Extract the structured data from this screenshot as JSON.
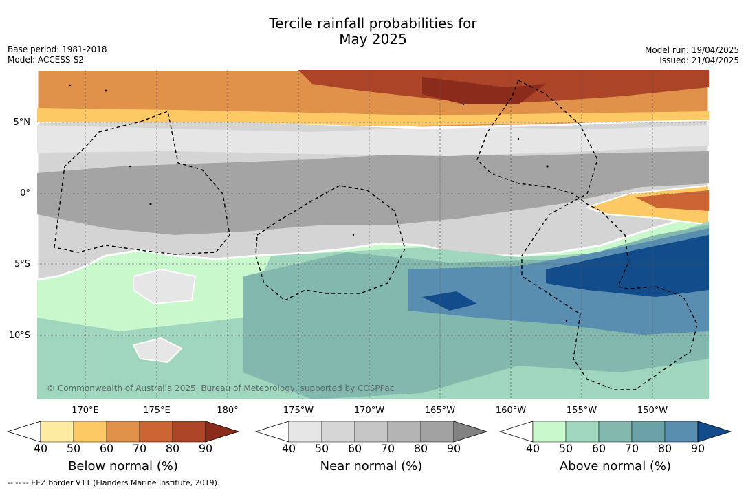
{
  "header": {
    "title_line1": "Tercile rainfall probabilities for",
    "title_line2": "May 2025",
    "base_period": "Base period: 1981-2018",
    "model": "Model: ACCESS-S2",
    "model_run": "Model run: 19/04/2025",
    "issued": "Issued: 21/04/2025"
  },
  "map": {
    "copyright": "© Commonwealth of Australia 2025, Bureau of Meteorology, supported by COSPPac",
    "lat_labels": [
      "5°N",
      "0°",
      "5°S",
      "10°S"
    ],
    "lon_labels": [
      "170°E",
      "175°E",
      "180°",
      "175°W",
      "170°W",
      "165°W",
      "160°W",
      "155°W",
      "150°W"
    ],
    "colors": {
      "below": [
        "#fdeba2",
        "#fdc965",
        "#e0914a",
        "#cc6433",
        "#ac4428",
        "#8a2b1c"
      ],
      "near": [
        "#e6e6e6",
        "#d6d6d6",
        "#c6c6c6",
        "#b4b4b4",
        "#a2a2a2",
        "#828282"
      ],
      "above": [
        "#c8f8cc",
        "#a0d6be",
        "#82b8ad",
        "#6aa2a8",
        "#5a8eb0",
        "#134c8a"
      ]
    }
  },
  "colorbars": [
    {
      "label": "Below normal (%)",
      "ticks": [
        "40",
        "50",
        "60",
        "70",
        "80",
        "90"
      ]
    },
    {
      "label": "Near normal (%)",
      "ticks": [
        "40",
        "50",
        "60",
        "70",
        "80",
        "90"
      ]
    },
    {
      "label": "Above normal (%)",
      "ticks": [
        "40",
        "50",
        "60",
        "70",
        "80",
        "90"
      ]
    }
  ],
  "footer": "--  --  -- EEZ border V11 (Flanders Marine Institute, 2019)."
}
